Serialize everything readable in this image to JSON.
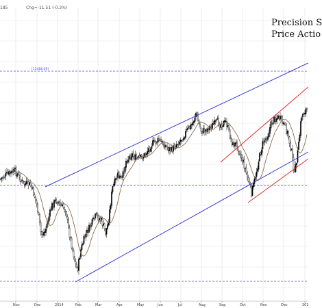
{
  "header": {
    "symbol_suffix": "185",
    "change": "Chg=-11.51 (-0.3%)"
  },
  "title": {
    "line1": "Precision S",
    "line2": "Price Actio"
  },
  "colors": {
    "background": "#ffffff",
    "grid": "#e1e1e1",
    "candle": "#000000",
    "moving_average": "#8b6b4a",
    "channel_blue": "#3a3ad8",
    "channel_red": "#e02a2a",
    "support_line": "#4a4af0"
  },
  "chart_data": {
    "type": "candlestick",
    "title": "",
    "x_months": [
      "Nov",
      "Dec",
      "2014",
      "Feb",
      "Mar",
      "Apr",
      "May",
      "Jun",
      "Jul",
      "Aug",
      "Sep",
      "Oct",
      "Nov",
      "Dec",
      "201"
    ],
    "horizontal_levels": [
      {
        "label": "[15488.09]",
        "style": "dashed"
      },
      {
        "label": "",
        "style": "dashed"
      },
      {
        "label": "",
        "style": "dashed"
      }
    ],
    "grid": true,
    "legend": "none"
  }
}
